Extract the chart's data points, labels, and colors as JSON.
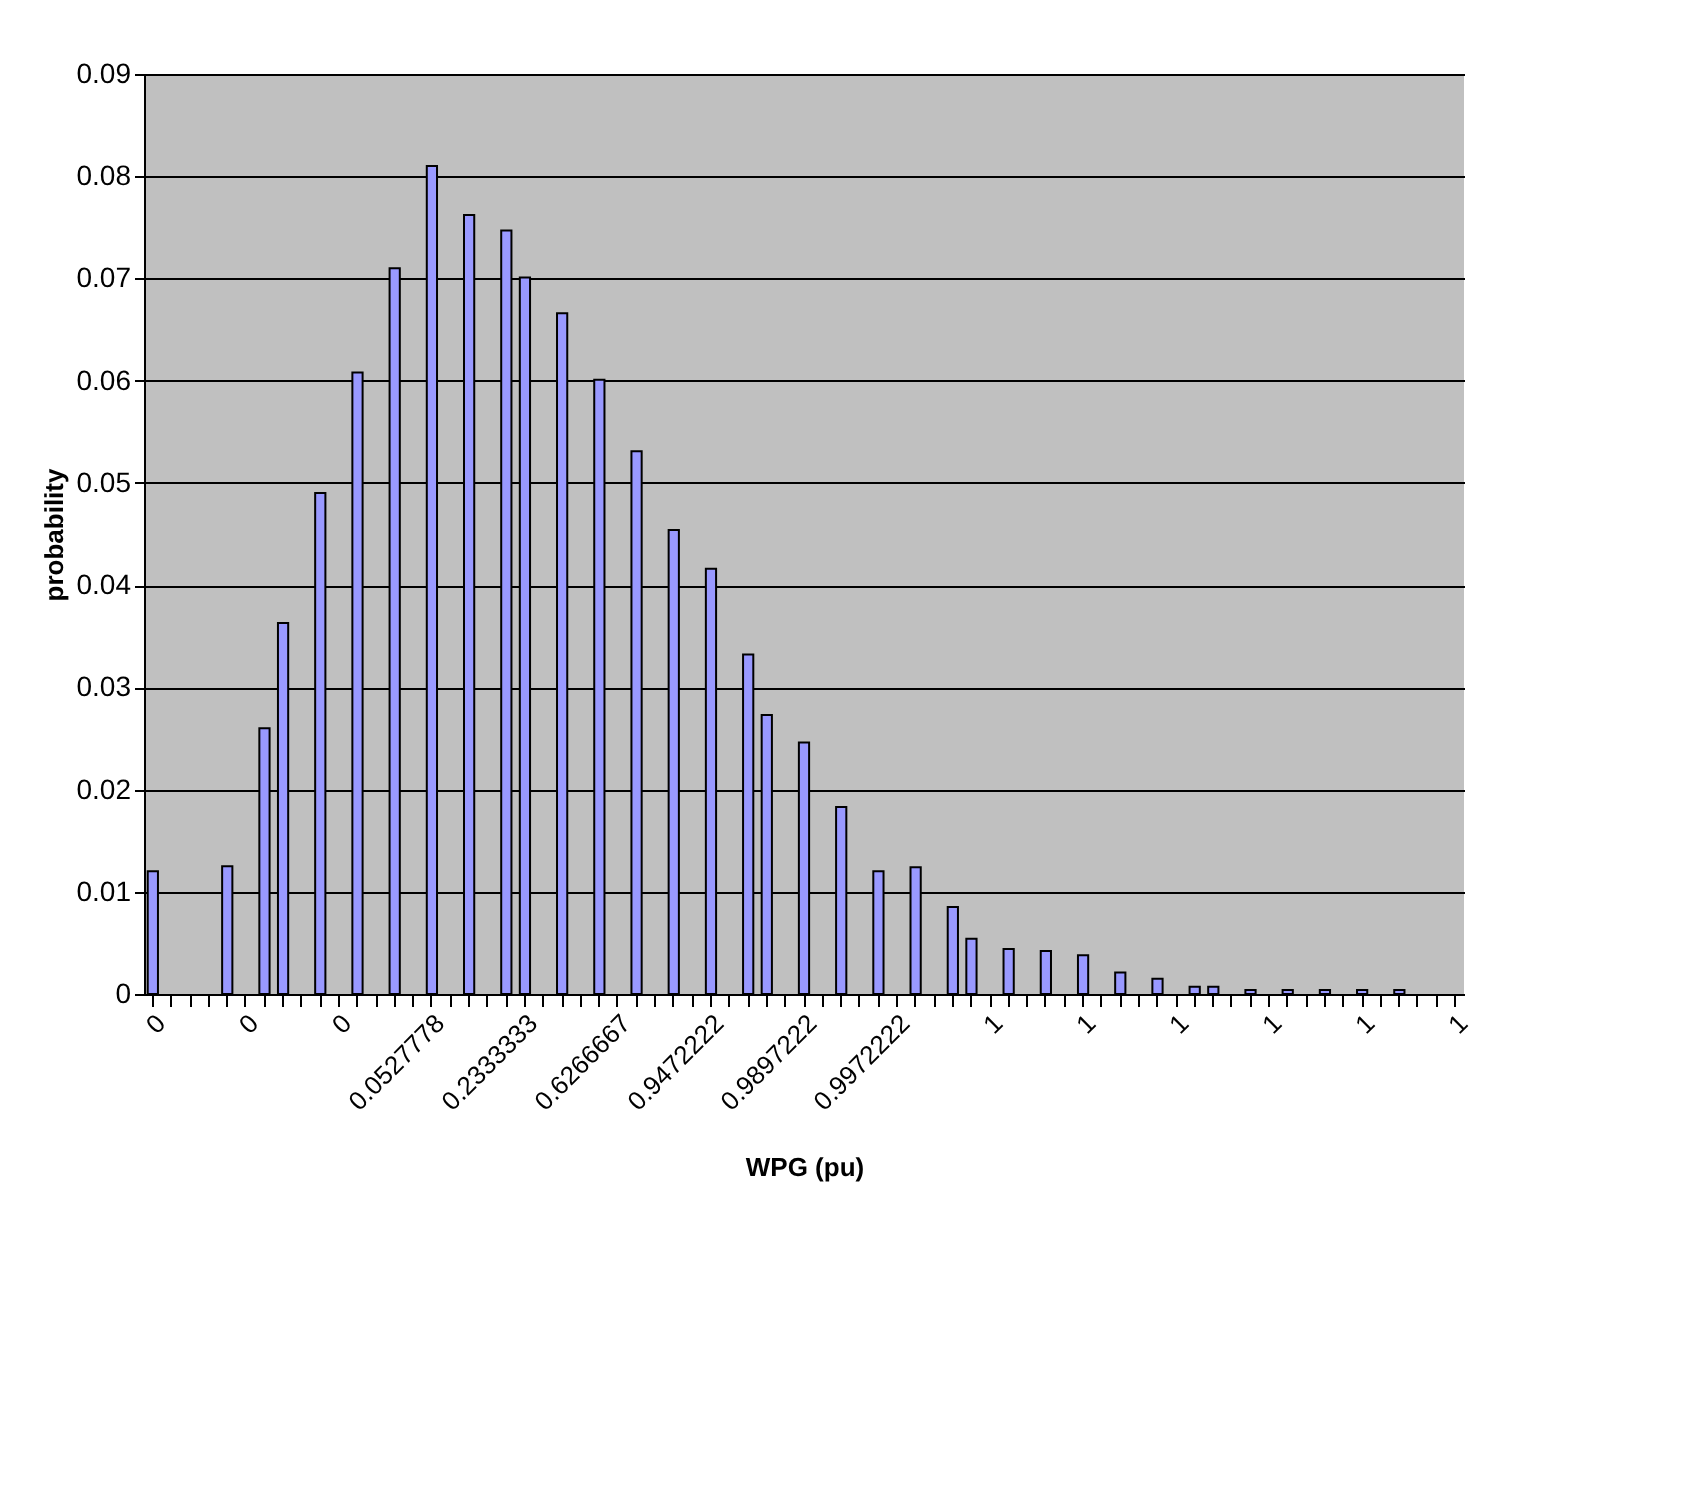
{
  "chart_data": {
    "type": "bar",
    "xlabel": "WPG (pu)",
    "ylabel": "probability",
    "categories": [
      "0",
      null,
      null,
      null,
      null,
      "0",
      null,
      null,
      null,
      null,
      "0",
      null,
      null,
      null,
      null,
      "0.0527778",
      null,
      null,
      null,
      null,
      "0.2333333",
      null,
      null,
      null,
      null,
      "0.6266667",
      null,
      null,
      null,
      null,
      "0.9472222",
      null,
      null,
      null,
      null,
      "0.9897222",
      null,
      null,
      null,
      null,
      "0.9972222",
      null,
      null,
      null,
      null,
      "1",
      null,
      null,
      null,
      null,
      "1",
      null,
      null,
      null,
      null,
      "1",
      null,
      null,
      null,
      null,
      "1",
      null,
      null,
      null,
      null,
      "1",
      null,
      null,
      null,
      null,
      "1"
    ],
    "values": [
      0.012,
      null,
      null,
      null,
      0.0125,
      null,
      0.026,
      0.0363,
      null,
      0.049,
      null,
      0.0608,
      null,
      0.071,
      null,
      0.081,
      null,
      0.0762,
      null,
      0.0747,
      0.0701,
      null,
      0.0666,
      null,
      0.0601,
      null,
      0.0531,
      null,
      0.0454,
      null,
      0.0416,
      null,
      0.0332,
      0.0273,
      null,
      0.0246,
      null,
      0.0183,
      null,
      0.012,
      null,
      0.0124,
      null,
      0.0085,
      0.0054,
      null,
      0.0044,
      null,
      0.0042,
      null,
      0.0038,
      null,
      0.0021,
      null,
      0.0015,
      null,
      0.0007,
      0.0007,
      null,
      0.0004,
      null,
      0.0004,
      null,
      0.0004,
      null,
      0.0004,
      null,
      0.0004,
      null,
      null,
      null
    ],
    "color": "#9999ff",
    "ylim": [
      0,
      0.09
    ],
    "yticks": [
      0,
      0.01,
      0.02,
      0.03,
      0.04,
      0.05,
      0.06,
      0.07,
      0.08,
      0.09
    ],
    "grid": "y"
  }
}
